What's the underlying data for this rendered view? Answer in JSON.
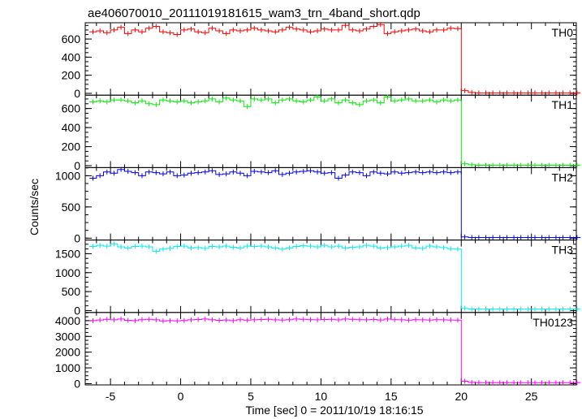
{
  "chart_data": {
    "type": "line",
    "title": "ae406070010_20111019181615_wam3_trn_4band_short.qdp",
    "xlabel": "Time [sec] 0 = 2011/10/19 18:16:15",
    "ylabel": "Counts/sec",
    "xlim": [
      -6.8,
      28.2
    ],
    "x_ticks": [
      -5,
      0,
      5,
      10,
      15,
      20,
      25
    ],
    "bin_width": 0.5,
    "x_start": -6.5,
    "panels": [
      {
        "name": "TH0",
        "color": "#ff0000",
        "ylim": [
          -20,
          780
        ],
        "y_ticks": [
          0,
          200,
          400,
          600
        ],
        "values": [
          680,
          690,
          670,
          700,
          730,
          660,
          700,
          680,
          720,
          740,
          680,
          670,
          650,
          700,
          710,
          680,
          670,
          720,
          690,
          660,
          700,
          690,
          700,
          720,
          700,
          690,
          680,
          700,
          730,
          710,
          700,
          680,
          690,
          710,
          700,
          700,
          750,
          700,
          690,
          710,
          740,
          760,
          660,
          680,
          690,
          700,
          710,
          690,
          680,
          700,
          700,
          720,
          715,
          30,
          10,
          5,
          5,
          5,
          5,
          5,
          5,
          5,
          5,
          5,
          5,
          5,
          5,
          5,
          5,
          5
        ]
      },
      {
        "name": "TH1",
        "color": "#00ee00",
        "ylim": [
          -20,
          740
        ],
        "y_ticks": [
          0,
          200,
          400,
          600
        ],
        "values": [
          670,
          680,
          670,
          690,
          690,
          680,
          660,
          680,
          650,
          640,
          690,
          680,
          670,
          680,
          660,
          670,
          680,
          700,
          670,
          710,
          690,
          680,
          620,
          700,
          690,
          700,
          660,
          690,
          700,
          680,
          670,
          690,
          720,
          680,
          700,
          660,
          690,
          660,
          640,
          680,
          690,
          660,
          720,
          680,
          690,
          700,
          680,
          680,
          690,
          670,
          690,
          680,
          690,
          20,
          10,
          5,
          5,
          5,
          5,
          5,
          5,
          5,
          5,
          5,
          5,
          5,
          5,
          5,
          5,
          5
        ]
      },
      {
        "name": "TH2",
        "color": "#0000ff",
        "ylim": [
          -30,
          1130
        ],
        "y_ticks": [
          0,
          500,
          1000
        ],
        "values": [
          960,
          1000,
          1060,
          1040,
          1100,
          1070,
          1050,
          1000,
          1060,
          1050,
          1030,
          1060,
          1000,
          1010,
          1040,
          1050,
          1060,
          1080,
          1020,
          1030,
          1060,
          1040,
          1000,
          1070,
          1060,
          1050,
          1080,
          1020,
          1040,
          1060,
          1070,
          1080,
          1060,
          1040,
          1050,
          960,
          1010,
          1060,
          1050,
          1000,
          1060,
          1040,
          1030,
          1060,
          1040,
          1050,
          1060,
          1050,
          1060,
          1050,
          1060,
          1050,
          1060,
          20,
          10,
          10,
          10,
          10,
          10,
          10,
          10,
          10,
          10,
          10,
          10,
          10,
          10,
          10,
          10,
          10
        ]
      },
      {
        "name": "TH3",
        "color": "#00eeee",
        "ylim": [
          -50,
          1860
        ],
        "y_ticks": [
          0,
          500,
          1000,
          1500
        ],
        "values": [
          1690,
          1720,
          1700,
          1760,
          1680,
          1650,
          1690,
          1700,
          1680,
          1560,
          1620,
          1640,
          1690,
          1700,
          1650,
          1660,
          1640,
          1690,
          1680,
          1700,
          1670,
          1650,
          1700,
          1690,
          1700,
          1680,
          1650,
          1620,
          1650,
          1690,
          1710,
          1700,
          1680,
          1720,
          1680,
          1700,
          1650,
          1670,
          1680,
          1720,
          1700,
          1650,
          1660,
          1680,
          1700,
          1720,
          1650,
          1640,
          1700,
          1680,
          1660,
          1630,
          1620,
          60,
          40,
          40,
          40,
          40,
          40,
          40,
          40,
          40,
          40,
          40,
          40,
          40,
          40,
          40,
          40,
          40
        ]
      },
      {
        "name": "TH0123",
        "color": "#ff00ff",
        "ylim": [
          -80,
          4520
        ],
        "y_ticks": [
          0,
          1000,
          2000,
          3000,
          4000
        ],
        "values": [
          4000,
          4040,
          4080,
          4050,
          4100,
          4020,
          4000,
          4060,
          4080,
          4050,
          3980,
          4000,
          3990,
          4010,
          4050,
          4070,
          4100,
          4050,
          4020,
          4040,
          4000,
          4060,
          4030,
          4050,
          4070,
          4080,
          4050,
          4040,
          4060,
          4100,
          4080,
          4060,
          4050,
          4070,
          4080,
          4050,
          4100,
          4080,
          4060,
          4050,
          4070,
          4040,
          4100,
          4060,
          4050,
          4030,
          4060,
          4050,
          4040,
          4060,
          4050,
          4040,
          4030,
          150,
          80,
          60,
          60,
          60,
          60,
          60,
          60,
          60,
          60,
          60,
          60,
          60,
          60,
          60,
          60,
          60
        ]
      }
    ]
  }
}
